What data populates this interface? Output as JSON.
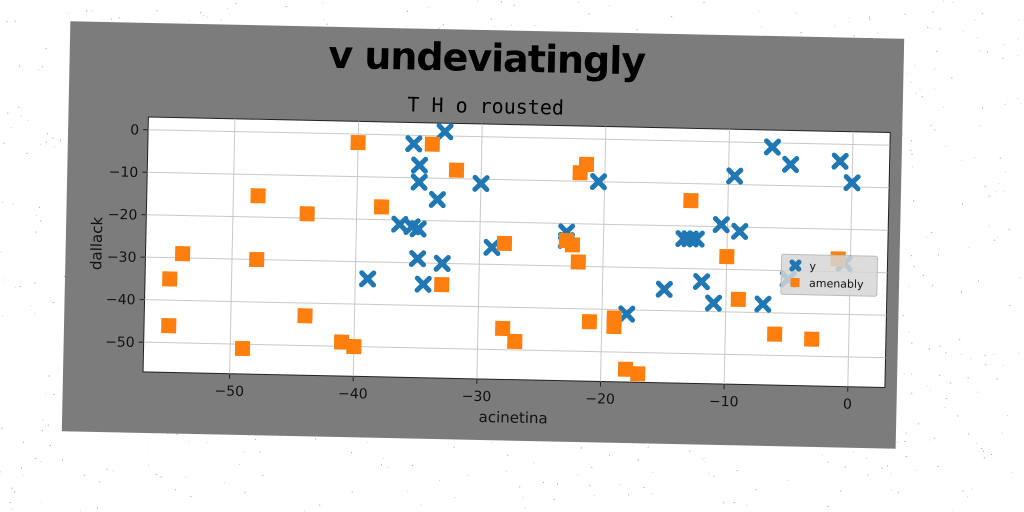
{
  "chart_data": {
    "type": "scatter",
    "title": "v undeviatingly",
    "subtitle": "T H o rousted",
    "xlabel": "acinetina",
    "ylabel": "dallack",
    "xlim": [
      -57,
      3
    ],
    "ylim": [
      -57,
      3
    ],
    "xticks": [
      -50,
      -40,
      -30,
      -20,
      -10,
      0
    ],
    "yticks": [
      0,
      -10,
      -20,
      -30,
      -40,
      -50
    ],
    "grid": true,
    "legend_position": "center-right",
    "series": [
      {
        "name": "y",
        "marker": "x",
        "color": "#1f77b4",
        "points": [
          [
            -33,
            1
          ],
          [
            -35.5,
            -2
          ],
          [
            -35,
            -7
          ],
          [
            -35,
            -11
          ],
          [
            -30,
            -11
          ],
          [
            -33.5,
            -15
          ],
          [
            -36.5,
            -21
          ],
          [
            -35.5,
            -21.5
          ],
          [
            -35,
            -22
          ],
          [
            -35,
            -29
          ],
          [
            -33,
            -30
          ],
          [
            -39,
            -34
          ],
          [
            -34.5,
            -35
          ],
          [
            -29,
            -26
          ],
          [
            -23,
            -22
          ],
          [
            -23,
            -24
          ],
          [
            -20.5,
            -10
          ],
          [
            -18,
            -41
          ],
          [
            -15,
            -35
          ],
          [
            -13.5,
            -23
          ],
          [
            -13,
            -23
          ],
          [
            -12.5,
            -23
          ],
          [
            -12,
            -33
          ],
          [
            -10.5,
            -19.5
          ],
          [
            -11,
            -38
          ],
          [
            -9.5,
            -8
          ],
          [
            -9,
            -21
          ],
          [
            -7,
            -38
          ],
          [
            -6.5,
            -1
          ],
          [
            -5,
            -5
          ],
          [
            -1,
            -4
          ],
          [
            0,
            -9
          ],
          [
            -5,
            -32
          ],
          [
            -0.5,
            -28
          ]
        ]
      },
      {
        "name": "amenably",
        "marker": "s",
        "color": "#ff7f0e",
        "points": [
          [
            -40,
            -2
          ],
          [
            -34,
            -2
          ],
          [
            -32,
            -8
          ],
          [
            -38,
            -17
          ],
          [
            -48,
            -15
          ],
          [
            -44,
            -19
          ],
          [
            -54,
            -29
          ],
          [
            -55,
            -35
          ],
          [
            -48,
            -30
          ],
          [
            -55,
            -46
          ],
          [
            -44,
            -43
          ],
          [
            -49,
            -51
          ],
          [
            -41,
            -49
          ],
          [
            -40,
            -50
          ],
          [
            -33,
            -35
          ],
          [
            -28,
            -25
          ],
          [
            -28,
            -45
          ],
          [
            -27,
            -48
          ],
          [
            -23,
            -24
          ],
          [
            -22.5,
            -25
          ],
          [
            -22,
            -29
          ],
          [
            -21.5,
            -6
          ],
          [
            -22,
            -8
          ],
          [
            -21,
            -43
          ],
          [
            -19,
            -42
          ],
          [
            -19,
            -44
          ],
          [
            -18,
            -54
          ],
          [
            -17,
            -55
          ],
          [
            -13,
            -14
          ],
          [
            -10,
            -27
          ],
          [
            -9,
            -37
          ],
          [
            -6,
            -45
          ],
          [
            -3,
            -46
          ],
          [
            -1,
            -27
          ]
        ]
      }
    ]
  }
}
